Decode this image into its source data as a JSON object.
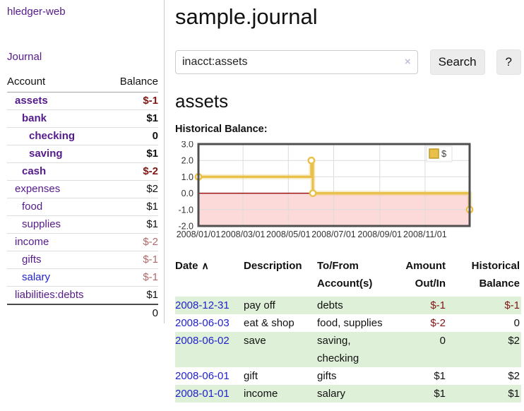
{
  "brand": "hledger-web",
  "sidebar": {
    "journal_link": "Journal",
    "table": {
      "account_header": "Account",
      "balance_header": "Balance"
    },
    "accounts": [
      {
        "name": "assets",
        "depth": 0,
        "bold": true,
        "style": "purple",
        "balance": "$-1",
        "balance_style": "neg"
      },
      {
        "name": "bank",
        "depth": 1,
        "bold": true,
        "style": "purple",
        "balance": "$1",
        "balance_style": "plain"
      },
      {
        "name": "checking",
        "depth": 2,
        "bold": true,
        "style": "purple",
        "balance": "0",
        "balance_style": "plain"
      },
      {
        "name": "saving",
        "depth": 2,
        "bold": true,
        "style": "purple",
        "balance": "$1",
        "balance_style": "plain"
      },
      {
        "name": "cash",
        "depth": 1,
        "bold": true,
        "style": "purple",
        "balance": "$-2",
        "balance_style": "neg"
      },
      {
        "name": "expenses",
        "depth": 0,
        "bold": false,
        "style": "purple",
        "balance": "$2",
        "balance_style": "plain"
      },
      {
        "name": "food",
        "depth": 1,
        "bold": false,
        "style": "purple",
        "balance": "$1",
        "balance_style": "plain"
      },
      {
        "name": "supplies",
        "depth": 1,
        "bold": false,
        "style": "purple",
        "balance": "$1",
        "balance_style": "plain"
      },
      {
        "name": "income",
        "depth": 0,
        "bold": false,
        "style": "purple",
        "balance": "$-2",
        "balance_style": "neg-soft"
      },
      {
        "name": "gifts",
        "depth": 1,
        "bold": false,
        "style": "purple",
        "balance": "$-1",
        "balance_style": "neg-soft"
      },
      {
        "name": "salary",
        "depth": 1,
        "bold": false,
        "style": "blue",
        "balance": "$-1",
        "balance_style": "neg-soft"
      },
      {
        "name": "liabilities:debts",
        "depth": 0,
        "bold": false,
        "style": "purple",
        "balance": "$1",
        "balance_style": "plain"
      }
    ],
    "total": "0"
  },
  "header": {
    "title": "sample.journal"
  },
  "search": {
    "value": "inacct:assets",
    "clear_icon": "×",
    "button": "Search",
    "help_button": "?"
  },
  "account_page": {
    "heading": "assets",
    "chart_label": "Historical Balance:"
  },
  "chart_data": {
    "type": "line",
    "step": true,
    "title": "Historical Balance",
    "ylim": [
      -2,
      3
    ],
    "x_range": [
      "2008-01-01",
      "2008-12-31"
    ],
    "grid": true,
    "legend_position": "top-right",
    "negative_region_fill": "#fcdada",
    "zero_line_color": "#991414",
    "y_ticks": [
      {
        "value": 3,
        "label": "3.0"
      },
      {
        "value": 2,
        "label": "2.0"
      },
      {
        "value": 1,
        "label": "1.0"
      },
      {
        "value": 0,
        "label": "0.0"
      },
      {
        "value": -1,
        "label": "-1.0"
      },
      {
        "value": -2,
        "label": "-2.0"
      }
    ],
    "x_ticks": [
      {
        "date": "2008-01-01",
        "label": "2008/01/01"
      },
      {
        "date": "2008-03-01",
        "label": "2008/03/01"
      },
      {
        "date": "2008-05-01",
        "label": "2008/05/01"
      },
      {
        "date": "2008-07-01",
        "label": "2008/07/01"
      },
      {
        "date": "2008-09-01",
        "label": "2008/09/01"
      },
      {
        "date": "2008-11-01",
        "label": "2008/11/01"
      }
    ],
    "series": [
      {
        "name": "$",
        "color": "#e8c04a",
        "points": [
          [
            "2008-01-01",
            1
          ],
          [
            "2008-06-01",
            2
          ],
          [
            "2008-06-03",
            0
          ],
          [
            "2008-12-31",
            -1
          ]
        ]
      }
    ]
  },
  "register": {
    "headers": {
      "date": "Date",
      "description": "Description",
      "accounts": "To/From Account(s)",
      "amount": "Amount Out/In",
      "balance": "Historical Balance"
    },
    "sort_icon": "∧",
    "rows": [
      {
        "date": "2008-12-31",
        "description": "pay off",
        "accounts": "debts",
        "amount": "$-1",
        "amount_style": "neg",
        "balance": "$-1",
        "balance_style": "neg",
        "shaded": true
      },
      {
        "date": "2008-06-03",
        "description": "eat & shop",
        "accounts": "food, supplies",
        "amount": "$-2",
        "amount_style": "neg",
        "balance": "0",
        "balance_style": "plain",
        "shaded": false
      },
      {
        "date": "2008-06-02",
        "description": "save",
        "accounts": "saving, checking",
        "amount": "0",
        "amount_style": "plain",
        "balance": "$2",
        "balance_style": "plain",
        "shaded": true
      },
      {
        "date": "2008-06-01",
        "description": "gift",
        "accounts": "gifts",
        "amount": "$1",
        "amount_style": "plain",
        "balance": "$2",
        "balance_style": "plain",
        "shaded": false
      },
      {
        "date": "2008-01-01",
        "description": "income",
        "accounts": "salary",
        "amount": "$1",
        "amount_style": "plain",
        "balance": "$1",
        "balance_style": "plain",
        "shaded": true
      }
    ]
  },
  "colors": {
    "link_purple": "#551a8b",
    "link_blue": "#2222cc",
    "negative_strong": "#801515",
    "negative_soft": "#b26868",
    "row_green": "#dff0d8",
    "chart_line_gold": "#e8c04a",
    "chart_negative_pink": "#fcdada",
    "chart_zero_line": "#991414"
  }
}
